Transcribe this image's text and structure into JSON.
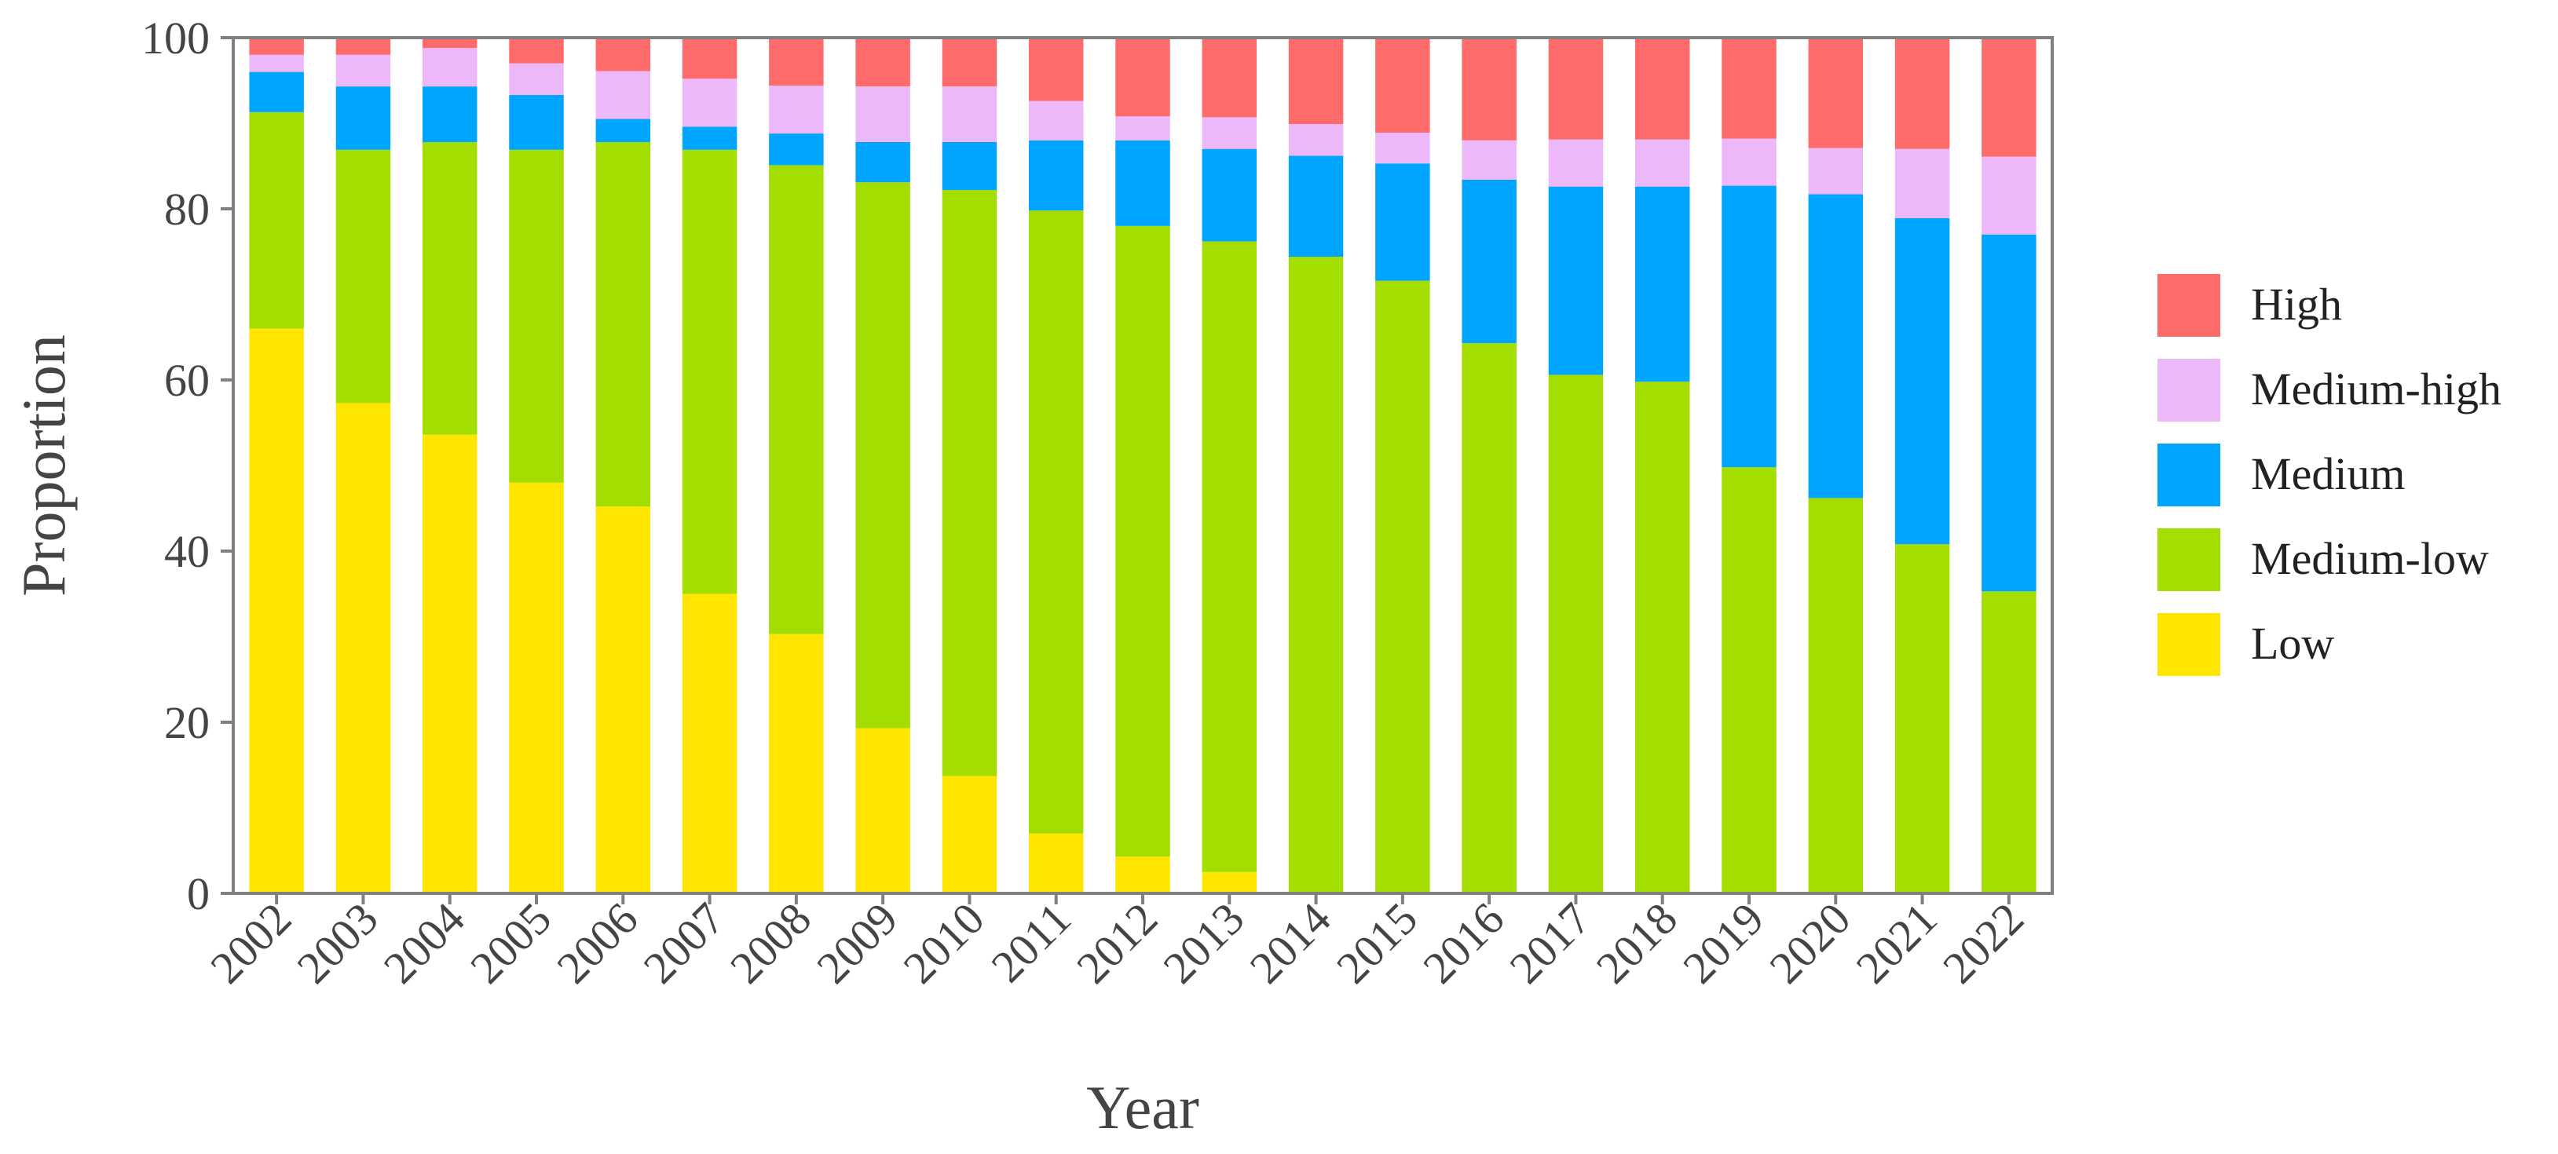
{
  "chart_data": {
    "type": "bar",
    "stacked": true,
    "title": "",
    "xlabel": "Year",
    "ylabel": "Proportion",
    "ylim": [
      0,
      100
    ],
    "yticks": [
      "0",
      "20",
      "40",
      "60",
      "80",
      "100"
    ],
    "grid": false,
    "legend_position": "right",
    "categories": [
      "2002",
      "2003",
      "2004",
      "2005",
      "2006",
      "2007",
      "2008",
      "2009",
      "2010",
      "2011",
      "2012",
      "2013",
      "2014",
      "2015",
      "2016",
      "2017",
      "2018",
      "2019",
      "2020",
      "2021",
      "2022"
    ],
    "series": [
      {
        "name": "Low",
        "color": "#FFE500",
        "values": [
          66,
          57.3,
          53.6,
          48,
          45.2,
          35,
          30.3,
          19.3,
          13.7,
          7,
          4.3,
          2.5,
          0,
          0,
          0,
          0,
          0,
          0,
          0,
          0,
          0
        ]
      },
      {
        "name": "Medium-low",
        "color": "#A3DE00",
        "values": [
          25.3,
          29.6,
          34.2,
          38.9,
          42.6,
          51.9,
          54.8,
          63.8,
          68.5,
          72.8,
          73.7,
          73.7,
          74.4,
          71.6,
          64.3,
          60.6,
          59.8,
          49.8,
          46.2,
          40.8,
          35.3
        ]
      },
      {
        "name": "Medium",
        "color": "#00A5FF",
        "values": [
          4.7,
          7.4,
          6.5,
          6.4,
          2.7,
          2.7,
          3.7,
          4.7,
          5.6,
          8.2,
          10,
          10.8,
          11.8,
          13.7,
          19.1,
          22,
          22.8,
          32.9,
          35.5,
          38.1,
          41.7
        ]
      },
      {
        "name": "Medium-high",
        "color": "#EDB8FA",
        "values": [
          2,
          3.7,
          4.5,
          3.7,
          5.6,
          5.6,
          5.6,
          6.5,
          6.5,
          4.6,
          2.8,
          3.7,
          3.7,
          3.6,
          4.6,
          5.5,
          5.5,
          5.5,
          5.4,
          8.1,
          9.1
        ]
      },
      {
        "name": "High",
        "color": "#FF6B6B",
        "values": [
          2,
          2,
          1.2,
          3,
          3.9,
          4.8,
          5.6,
          5.7,
          5.7,
          7.4,
          9.2,
          9.3,
          10.1,
          11.1,
          12,
          11.9,
          11.9,
          11.8,
          12.9,
          13,
          13.9
        ]
      }
    ],
    "legend_order": [
      "High",
      "Medium-high",
      "Medium",
      "Medium-low",
      "Low"
    ],
    "axis_color": "#808080",
    "text_color": "#444444"
  }
}
